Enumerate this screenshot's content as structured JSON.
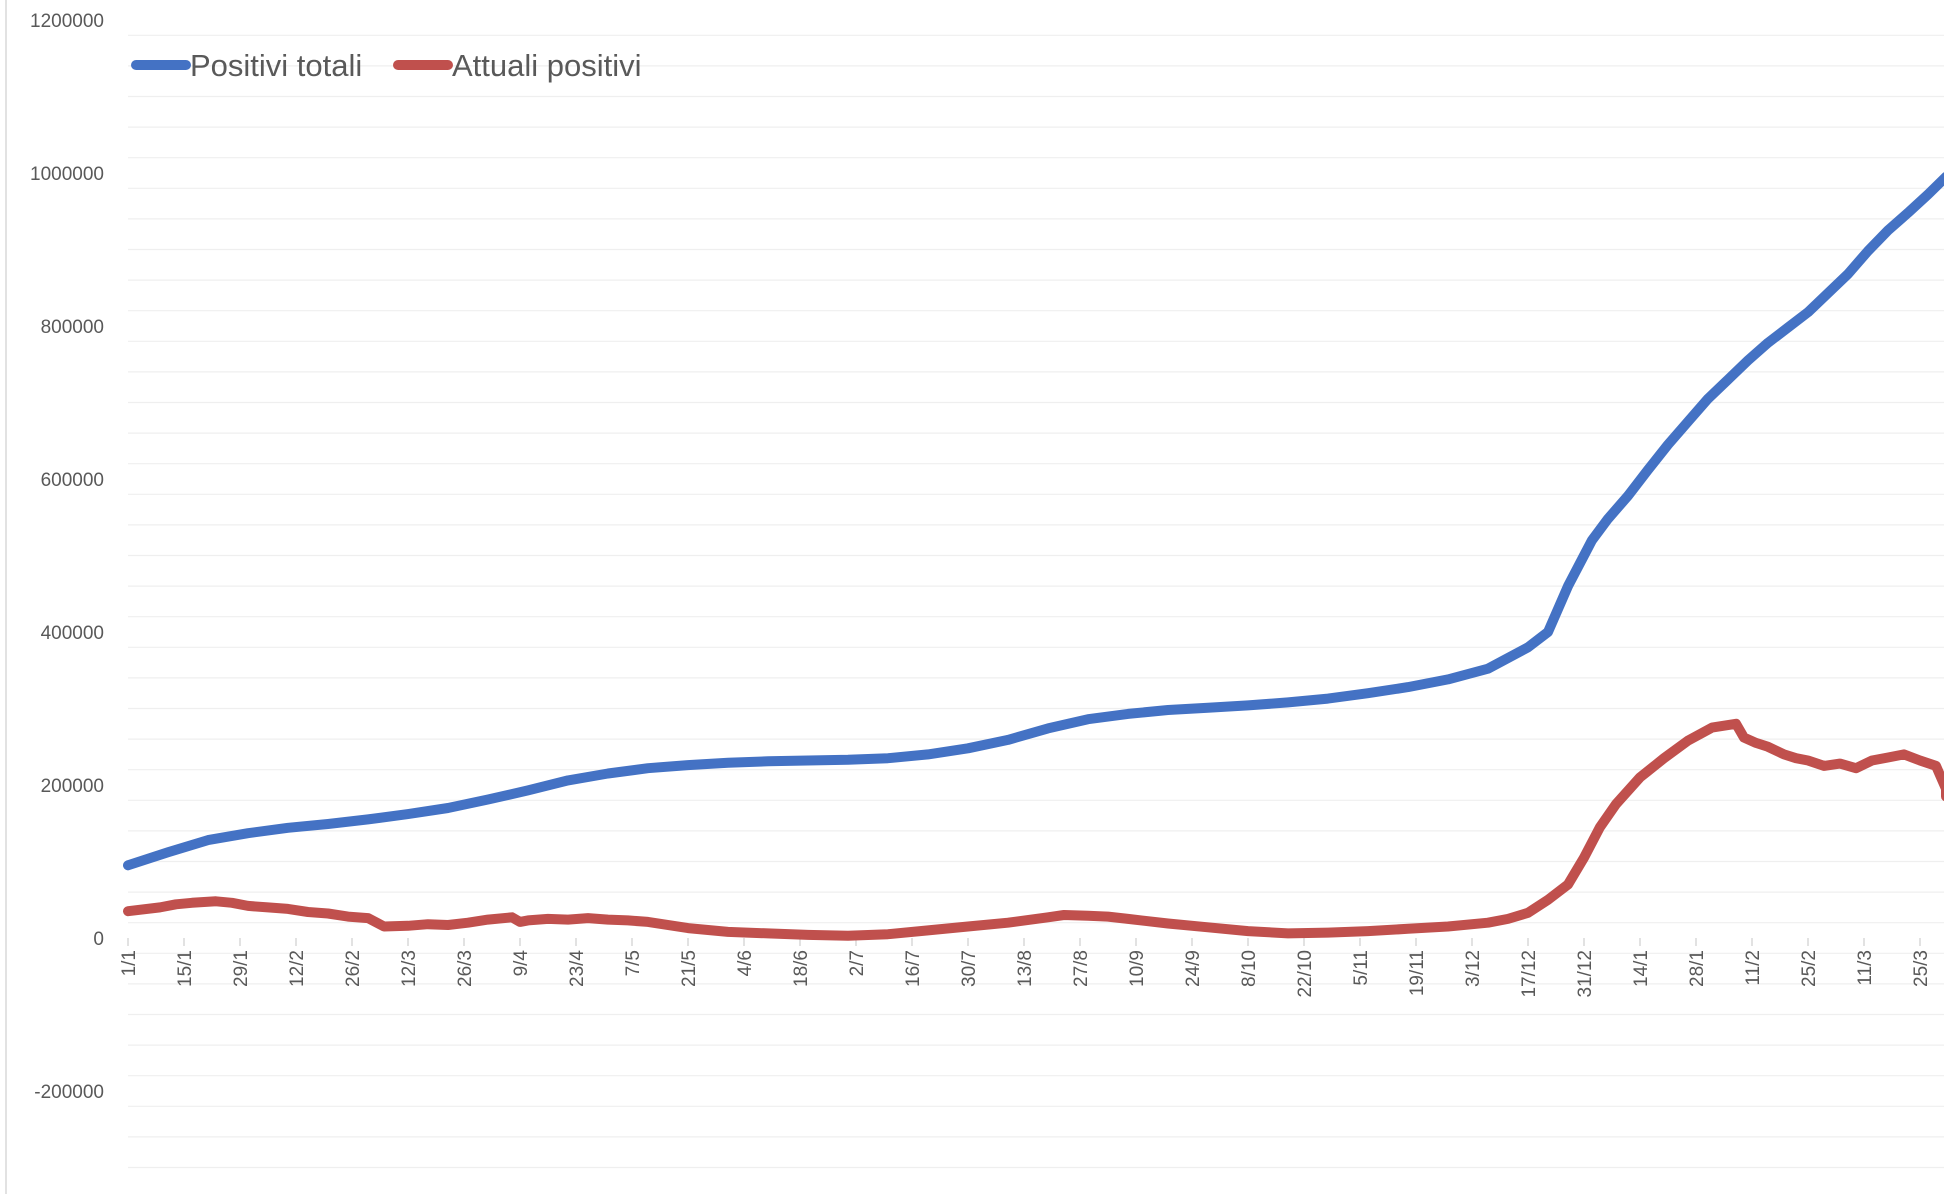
{
  "chart_data": {
    "type": "line",
    "title": "",
    "xlabel": "",
    "ylabel": "",
    "ylim": [
      -300000,
      1200000
    ],
    "yticks": [
      1200000,
      1000000,
      800000,
      600000,
      400000,
      200000,
      0,
      -200000
    ],
    "ytick_labels": [
      "1200000",
      "1000000",
      "800000",
      "600000",
      "400000",
      "200000",
      "0",
      "-200000"
    ],
    "grid": true,
    "legend": "top-left",
    "x_tick_labels": [
      "1/1",
      "15/1",
      "29/1",
      "12/2",
      "26/2",
      "12/3",
      "26/3",
      "9/4",
      "23/4",
      "7/5",
      "21/5",
      "4/6",
      "18/6",
      "2/7",
      "16/7",
      "30/7",
      "13/8",
      "27/8",
      "10/9",
      "24/9",
      "8/10",
      "22/10",
      "5/11",
      "19/11",
      "3/12",
      "17/12",
      "31/12",
      "14/1",
      "28/1",
      "11/2",
      "25/2",
      "11/3",
      "25/3"
    ],
    "tick_interval_days": 14,
    "total_days": 456,
    "series": [
      {
        "name": "Positivi totali",
        "color": "#4472C4",
        "days": [
          0,
          10,
          20,
          30,
          40,
          50,
          60,
          70,
          80,
          90,
          100,
          110,
          120,
          130,
          140,
          150,
          160,
          170,
          180,
          190,
          200,
          210,
          220,
          230,
          240,
          250,
          260,
          270,
          280,
          290,
          300,
          310,
          320,
          330,
          340,
          350,
          355,
          360,
          364,
          366,
          370,
          375,
          380,
          385,
          390,
          395,
          400,
          405,
          410,
          415,
          420,
          425,
          430,
          435,
          440,
          445,
          450,
          455
        ],
        "values": [
          95000,
          112000,
          128000,
          137000,
          144000,
          149000,
          155000,
          162000,
          170000,
          181000,
          193000,
          206000,
          215000,
          222000,
          226000,
          229000,
          231000,
          232000,
          233000,
          235000,
          240000,
          248000,
          259000,
          274000,
          286000,
          293000,
          298000,
          301000,
          304000,
          308000,
          313000,
          320000,
          328000,
          338000,
          352000,
          380000,
          400000,
          460000,
          500000,
          520000,
          548000,
          578000,
          612000,
          645000,
          675000,
          705000,
          730000,
          755000,
          778000,
          798000,
          818000,
          843000,
          868000,
          898000,
          925000,
          948000,
          972000,
          995000
        ]
      },
      {
        "name": "Attuali positivi",
        "color": "#C0504D",
        "days": [
          0,
          8,
          12,
          16,
          22,
          26,
          30,
          35,
          40,
          45,
          50,
          55,
          60,
          64,
          70,
          75,
          80,
          85,
          90,
          96,
          98,
          100,
          105,
          110,
          115,
          120,
          125,
          130,
          140,
          150,
          160,
          170,
          180,
          190,
          200,
          210,
          220,
          230,
          234,
          240,
          245,
          250,
          260,
          270,
          280,
          290,
          300,
          310,
          320,
          330,
          340,
          345,
          350,
          355,
          360,
          364,
          368,
          372,
          378,
          384,
          390,
          396,
          402,
          404,
          407,
          410,
          414,
          417,
          420,
          424,
          428,
          432,
          436,
          440,
          444,
          448,
          452,
          455,
          456
        ],
        "values": [
          35000,
          40000,
          44000,
          46000,
          48000,
          46000,
          42000,
          40000,
          38000,
          34000,
          32000,
          28000,
          26000,
          15000,
          16000,
          18000,
          17000,
          20000,
          24000,
          27000,
          21000,
          23000,
          25000,
          24000,
          26000,
          24000,
          23000,
          21000,
          13000,
          8000,
          6000,
          4000,
          3000,
          5000,
          10000,
          15000,
          20000,
          27000,
          30000,
          29000,
          28000,
          25000,
          19000,
          14000,
          9000,
          6000,
          7000,
          9000,
          12000,
          15000,
          20000,
          25000,
          33000,
          50000,
          70000,
          105000,
          145000,
          175000,
          210000,
          235000,
          258000,
          275000,
          280000,
          262000,
          255000,
          250000,
          240000,
          235000,
          232000,
          225000,
          228000,
          222000,
          232000,
          236000,
          240000,
          232000,
          225000,
          195000,
          185000
        ]
      }
    ]
  }
}
